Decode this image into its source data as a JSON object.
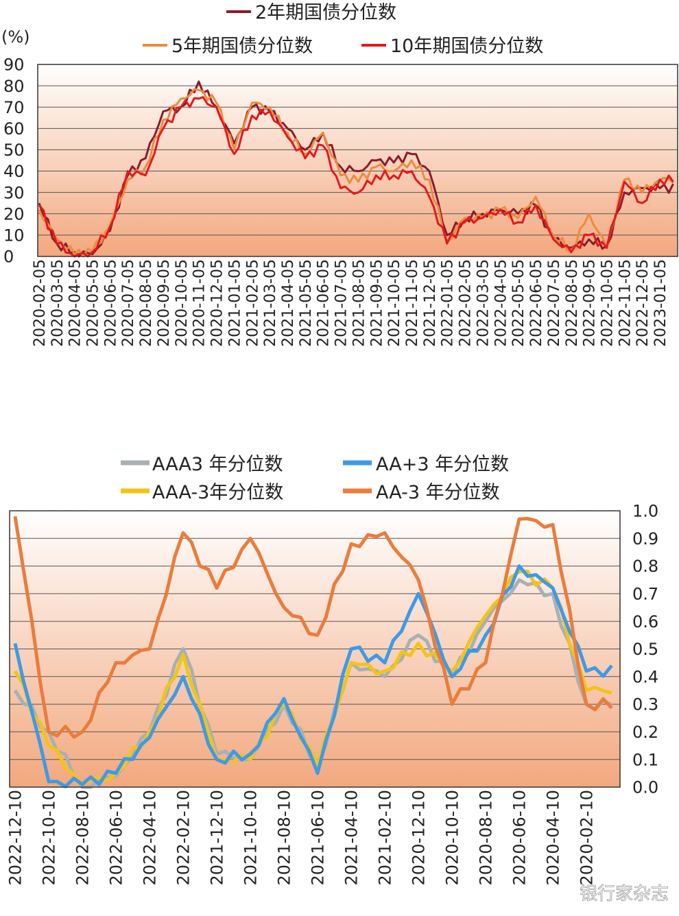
{
  "watermark": "银行家杂志",
  "colors": {
    "y2": "#8b1a2b",
    "y5": "#ee8a3c",
    "y10": "#e8161b",
    "aaa3": "#a8b0b4",
    "aap3": "#3e9ae6",
    "aaam3": "#f2c418",
    "aam3": "#eb7c3c",
    "grid": "#555555",
    "bg_top": "#ffffff",
    "bg_bottom": "#f2a87e"
  },
  "chart_data": [
    {
      "type": "line",
      "ylabel": "(%)",
      "ylim": [
        0,
        90
      ],
      "yticks": [
        "0",
        "10",
        "20",
        "30",
        "40",
        "50",
        "60",
        "70",
        "80",
        "90"
      ],
      "grid": true,
      "legend_placement": "top",
      "x": [
        "2020-02-05",
        "2020-03-05",
        "2020-04-05",
        "2020-05-05",
        "2020-06-05",
        "2020-07-05",
        "2020-08-05",
        "2020-09-05",
        "2020-10-05",
        "2020-11-05",
        "2020-12-05",
        "2021-01-05",
        "2021-02-05",
        "2021-03-05",
        "2021-04-05",
        "2021-05-05",
        "2021-06-05",
        "2021-07-05",
        "2021-08-05",
        "2021-09-05",
        "2021-10-05",
        "2021-11-05",
        "2021-12-05",
        "2022-01-05",
        "2022-02-05",
        "2022-03-05",
        "2022-04-05",
        "2022-05-05",
        "2022-06-05",
        "2022-07-05",
        "2022-08-05",
        "2022-09-05",
        "2022-10-05",
        "2022-11-05",
        "2022-12-05",
        "2023-01-05"
      ],
      "series": [
        {
          "name": "2年期国债分位数",
          "values": [
            25,
            6,
            2,
            1,
            12,
            38,
            46,
            68,
            70,
            82,
            70,
            53,
            70,
            68,
            60,
            50,
            58,
            42,
            40,
            45,
            44,
            48,
            40,
            10,
            18,
            20,
            22,
            20,
            24,
            8,
            4,
            8,
            5,
            30,
            32,
            32
          ]
        },
        {
          "name": "5年期国债分位数",
          "values": [
            22,
            8,
            1,
            2,
            14,
            36,
            42,
            64,
            74,
            78,
            72,
            50,
            72,
            70,
            58,
            48,
            58,
            38,
            35,
            42,
            40,
            45,
            36,
            7,
            18,
            18,
            22,
            18,
            28,
            10,
            3,
            20,
            4,
            36,
            30,
            36
          ]
        },
        {
          "name": "10年期国债分位数",
          "values": [
            24,
            6,
            0,
            2,
            14,
            40,
            38,
            60,
            70,
            74,
            70,
            48,
            66,
            68,
            56,
            46,
            52,
            32,
            30,
            38,
            38,
            40,
            28,
            6,
            16,
            18,
            22,
            16,
            24,
            8,
            2,
            10,
            4,
            35,
            25,
            36
          ]
        }
      ]
    },
    {
      "type": "line",
      "ylim": [
        0,
        1.0
      ],
      "yticks": [
        "0.0",
        "0.1",
        "0.2",
        "0.3",
        "0.4",
        "0.5",
        "0.6",
        "0.7",
        "0.8",
        "0.9",
        "1.0"
      ],
      "grid": true,
      "legend_placement": "top",
      "x": [
        "2022-12-10",
        "2022-10-10",
        "2022-08-10",
        "2022-06-10",
        "2022-04-10",
        "2022-02-10",
        "2021-12-10",
        "2021-10-10",
        "2021-08-10",
        "2021-06-10",
        "2021-04-10",
        "2021-02-10",
        "2020-12-10",
        "2020-10-10",
        "2020-08-10",
        "2020-06-10",
        "2020-04-10",
        "2020-02-10"
      ],
      "series": [
        {
          "name": "AAA3 年分位数",
          "values": [
            0.35,
            0.2,
            0.0,
            0.04,
            0.2,
            0.5,
            0.12,
            0.1,
            0.3,
            0.08,
            0.45,
            0.4,
            0.55,
            0.4,
            0.6,
            0.75,
            0.7,
            0.3
          ]
        },
        {
          "name": "AA+3 年分位数",
          "values": [
            0.52,
            0.02,
            0.01,
            0.05,
            0.18,
            0.4,
            0.1,
            0.12,
            0.32,
            0.05,
            0.5,
            0.45,
            0.7,
            0.4,
            0.55,
            0.8,
            0.72,
            0.42
          ]
        },
        {
          "name": "AAA-3年分位数",
          "values": [
            0.42,
            0.15,
            0.01,
            0.05,
            0.2,
            0.48,
            0.1,
            0.1,
            0.3,
            0.08,
            0.45,
            0.42,
            0.52,
            0.42,
            0.62,
            0.78,
            0.72,
            0.35
          ]
        },
        {
          "name": "AA-3 年分位数",
          "values": [
            0.98,
            0.2,
            0.2,
            0.45,
            0.5,
            0.92,
            0.72,
            0.9,
            0.65,
            0.55,
            0.88,
            0.92,
            0.75,
            0.3,
            0.45,
            0.97,
            0.95,
            0.3
          ]
        }
      ]
    }
  ]
}
